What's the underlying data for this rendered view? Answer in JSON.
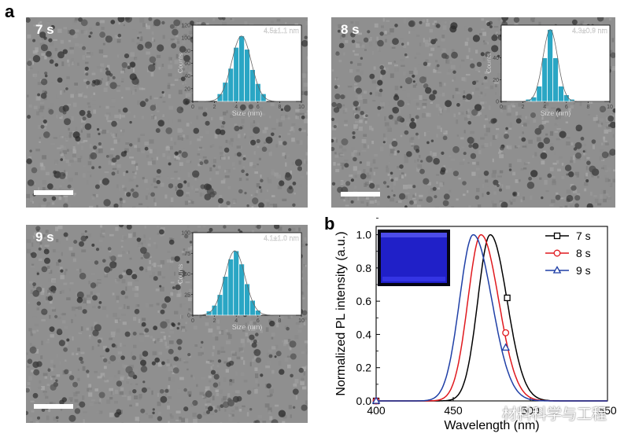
{
  "panel_a_label": "a",
  "panel_b_label": "b",
  "tem_images": [
    {
      "label": "7 s",
      "stat": "4.5±1.1 nm",
      "xlabel": "Size (nm)",
      "ylabel": "Counts",
      "yticks": [
        "0",
        "20",
        "40",
        "60",
        "80",
        "100",
        "120"
      ],
      "ymax": 120,
      "xticks": [
        "0",
        "2",
        "4",
        "6",
        "8",
        "10"
      ],
      "bins": [
        2.5,
        3.0,
        3.5,
        4.0,
        4.5,
        5.0,
        5.5,
        6.0,
        6.5
      ],
      "counts": [
        12,
        30,
        52,
        85,
        103,
        82,
        50,
        28,
        12
      ]
    },
    {
      "label": "8 s",
      "stat": "4.3±0.9 nm",
      "xlabel": "Size (nm)",
      "ylabel": "Counts",
      "yticks": [
        "0",
        "20",
        "40",
        "60"
      ],
      "ymax": 70,
      "xticks": [
        "0",
        "2",
        "4",
        "6",
        "8",
        "10"
      ],
      "bins": [
        2.5,
        3.0,
        3.5,
        4.0,
        4.5,
        5.0,
        5.5,
        6.0,
        6.5
      ],
      "counts": [
        2,
        4,
        14,
        40,
        66,
        40,
        14,
        6,
        2
      ]
    },
    {
      "label": "9 s",
      "stat": "4.1±1.0 nm",
      "xlabel": "Size (nm)",
      "ylabel": "Counts",
      "yticks": [
        "0",
        "25",
        "50",
        "75",
        "100"
      ],
      "ymax": 100,
      "xticks": [
        "0",
        "2",
        "4",
        "6",
        "8",
        "10"
      ],
      "bins": [
        1.5,
        2.0,
        2.5,
        3.0,
        3.5,
        4.0,
        4.5,
        5.0,
        5.5,
        6.0
      ],
      "counts": [
        5,
        12,
        25,
        47,
        68,
        78,
        62,
        38,
        18,
        6
      ]
    }
  ],
  "chart_data": {
    "type": "line",
    "title": "",
    "xlabel": "Wavelength (nm)",
    "ylabel": "Normalized PL intensity (a.u.)",
    "xlim": [
      400,
      550
    ],
    "ylim": [
      0,
      1.05
    ],
    "xticks": [
      "400",
      "450",
      "500",
      "550"
    ],
    "yticks": [
      "0.0",
      "0.2",
      "0.4",
      "0.6",
      "0.8",
      "1.0"
    ],
    "legend_position": "top-right",
    "series": [
      {
        "name": "7 s",
        "color": "#000000",
        "marker": "square",
        "peak": 474,
        "fwhm": 19,
        "marker_x": 485,
        "marker_y": 0.62
      },
      {
        "name": "8 s",
        "color": "#e0191e",
        "marker": "circle",
        "peak": 468,
        "fwhm": 20,
        "marker_x": 484,
        "marker_y": 0.41
      },
      {
        "name": "9 s",
        "color": "#1f3fa6",
        "marker": "triangle",
        "peak": 463,
        "fwhm": 21,
        "marker_x": 484,
        "marker_y": 0.32
      }
    ]
  },
  "watermark_text": "材料科学与工程",
  "watermark_icon": "wechat-icon"
}
